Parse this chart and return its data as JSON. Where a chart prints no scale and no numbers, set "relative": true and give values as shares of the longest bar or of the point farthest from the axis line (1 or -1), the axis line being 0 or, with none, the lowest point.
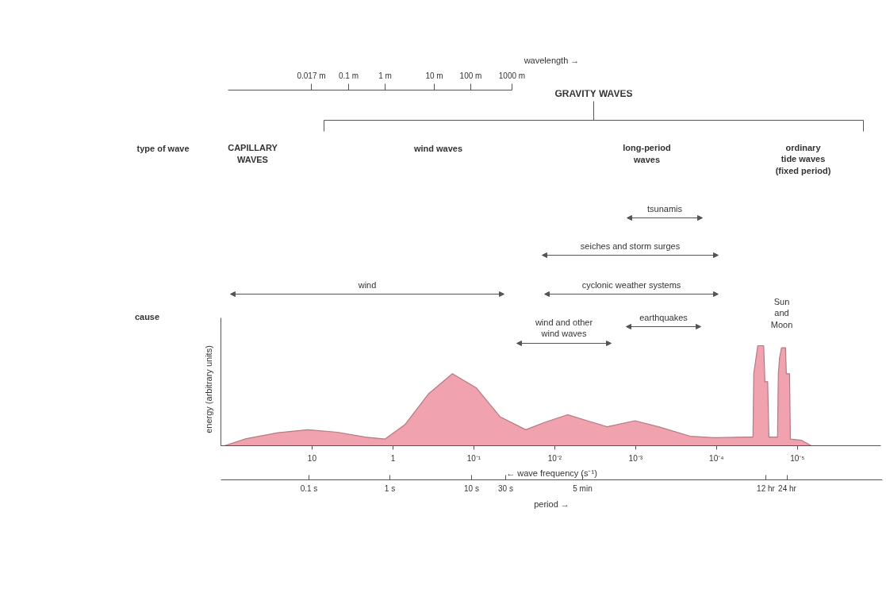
{
  "chart_data": {
    "type": "area",
    "relative": true,
    "log": "x",
    "color": "#f0a3ae",
    "xlabel": "← wave frequency (s⁻¹)",
    "ylabel": "energy (arbitrary units)",
    "x": [
      121,
      65.2,
      26.4,
      11.3,
      4.85,
      2.2,
      1.25,
      0.713,
      0.362,
      0.184,
      0.0935,
      0.0474,
      0.0228,
      0.0137,
      0.00697,
      0.00396,
      0.00225,
      0.00102,
      0.00052,
      0.000211,
      0.000107,
      4.34e-05,
      3.54e-05,
      3.46e-05,
      3.09e-05,
      2.61e-05,
      2.52e-05,
      2.33e-05,
      2.25e-05,
      1.76e-05,
      1.72e-05,
      1.66e-05,
      1.57e-05,
      1.4e-05,
      1.37e-05,
      1.25e-05,
      1.22e-05,
      8.93e-06,
      6.73e-06
    ],
    "values": [
      0,
      0.07,
      0.13,
      0.16,
      0.135,
      0.087,
      0.067,
      0.21,
      0.52,
      0.72,
      0.58,
      0.29,
      0.16,
      0.23,
      0.31,
      0.25,
      0.19,
      0.25,
      0.19,
      0.095,
      0.08,
      0.087,
      0.087,
      0.72,
      1,
      1,
      0.64,
      0.64,
      0.087,
      0.087,
      0.72,
      0.88,
      0.98,
      0.98,
      0.72,
      0.72,
      0.067,
      0.055,
      0
    ],
    "xlim": [
      134,
      9.3e-07
    ],
    "xticks": [
      10,
      1,
      {
        "value": 0.1,
        "label": "10⁻¹"
      },
      {
        "value": 0.01,
        "label": "10⁻²"
      },
      {
        "value": 0.001,
        "label": "10⁻³"
      },
      {
        "value": 0.0001,
        "label": "10⁻⁴"
      },
      {
        "value": 1e-05,
        "label": "10⁻⁵"
      }
    ],
    "annotations": [
      "GRAVITY WAVES",
      "wind",
      "tsunamis",
      "seiches and storm surges",
      "cyclonic weather systems",
      "earthquakes",
      "wind and other\nwind waves",
      "type of wave",
      "cause",
      "CAPILLARY\nWAVES",
      "wind waves",
      "long-period\nwaves",
      "ordinary\ntide waves\n(fixed period)",
      "Sun\nand\nMoon",
      "0.1 s",
      "1 s",
      "10 s",
      "30 s",
      "5 min",
      "12 hr",
      "24 hr",
      "period →",
      "0.017 m",
      "0.1 m",
      "1 m",
      "10 m",
      "100 m",
      "1000 m",
      "wavelength →"
    ]
  }
}
